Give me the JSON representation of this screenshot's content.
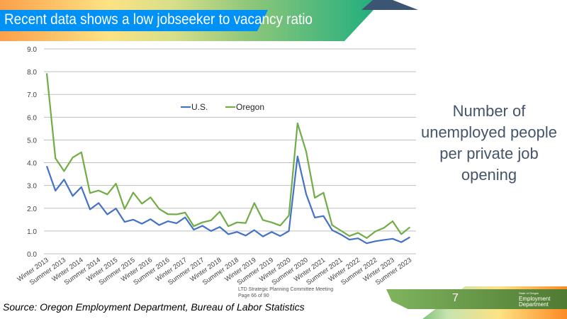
{
  "header": {
    "title": "Recent data shows a low jobseeker to vacancy ratio"
  },
  "side_text": "Number of unemployed people per private job opening",
  "footer": {
    "source": "Source: Oregon Employment Department, Bureau of Labor Statistics",
    "meeting": "LTD Strategic Planning Committee Meeting",
    "page": "Page 66 of 90",
    "slide_number": "7",
    "logo_small": "State of Oregon",
    "logo_line1": "Employment",
    "logo_line2": "Department"
  },
  "chart_data": {
    "type": "line",
    "title": "",
    "xlabel": "",
    "ylabel": "",
    "ylim": [
      0,
      9
    ],
    "grid": true,
    "legend": "top-center",
    "yticks": [
      "0.0",
      "1.0",
      "2.0",
      "3.0",
      "4.0",
      "5.0",
      "6.0",
      "7.0",
      "8.0",
      "9.0"
    ],
    "xtick_labels": [
      "Winter 2013",
      "Summer 2013",
      "Winter 2014",
      "Summer 2014",
      "Winter 2015",
      "Summer 2015",
      "Winter 2016",
      "Summer 2016",
      "Winter 2017",
      "Summer 2017",
      "Winter 2018",
      "Summer 2018",
      "Winter 2019",
      "Summer 2019",
      "Winter 2020",
      "Summer 2020",
      "Winter 2021",
      "Summer 2021",
      "Winter 2022",
      "Summer 2022",
      "Winter 2023",
      "Summer 2023"
    ],
    "series": [
      {
        "name": "U.S.",
        "color": "#4472c4",
        "values": [
          3.85,
          2.77,
          3.26,
          2.54,
          2.93,
          1.95,
          2.23,
          1.73,
          1.99,
          1.4,
          1.5,
          1.32,
          1.52,
          1.26,
          1.43,
          1.34,
          1.6,
          1.06,
          1.23,
          1.0,
          1.18,
          0.86,
          0.96,
          0.8,
          1.04,
          0.76,
          0.96,
          0.78,
          1.0,
          4.28,
          2.62,
          1.59,
          1.66,
          1.04,
          0.85,
          0.62,
          0.68,
          0.46,
          0.55,
          0.61,
          0.66,
          0.51,
          0.73
        ]
      },
      {
        "name": "Oregon",
        "color": "#70ad47",
        "values": [
          7.93,
          4.2,
          3.63,
          4.23,
          4.46,
          2.67,
          2.78,
          2.61,
          3.08,
          1.97,
          2.69,
          2.2,
          2.48,
          1.97,
          1.74,
          1.73,
          1.81,
          1.21,
          1.38,
          1.47,
          1.85,
          1.21,
          1.38,
          1.35,
          2.23,
          1.48,
          1.38,
          1.24,
          1.68,
          5.73,
          4.49,
          2.46,
          2.68,
          1.26,
          1.02,
          0.78,
          0.92,
          0.69,
          0.98,
          1.14,
          1.43,
          0.86,
          1.17
        ]
      }
    ]
  }
}
